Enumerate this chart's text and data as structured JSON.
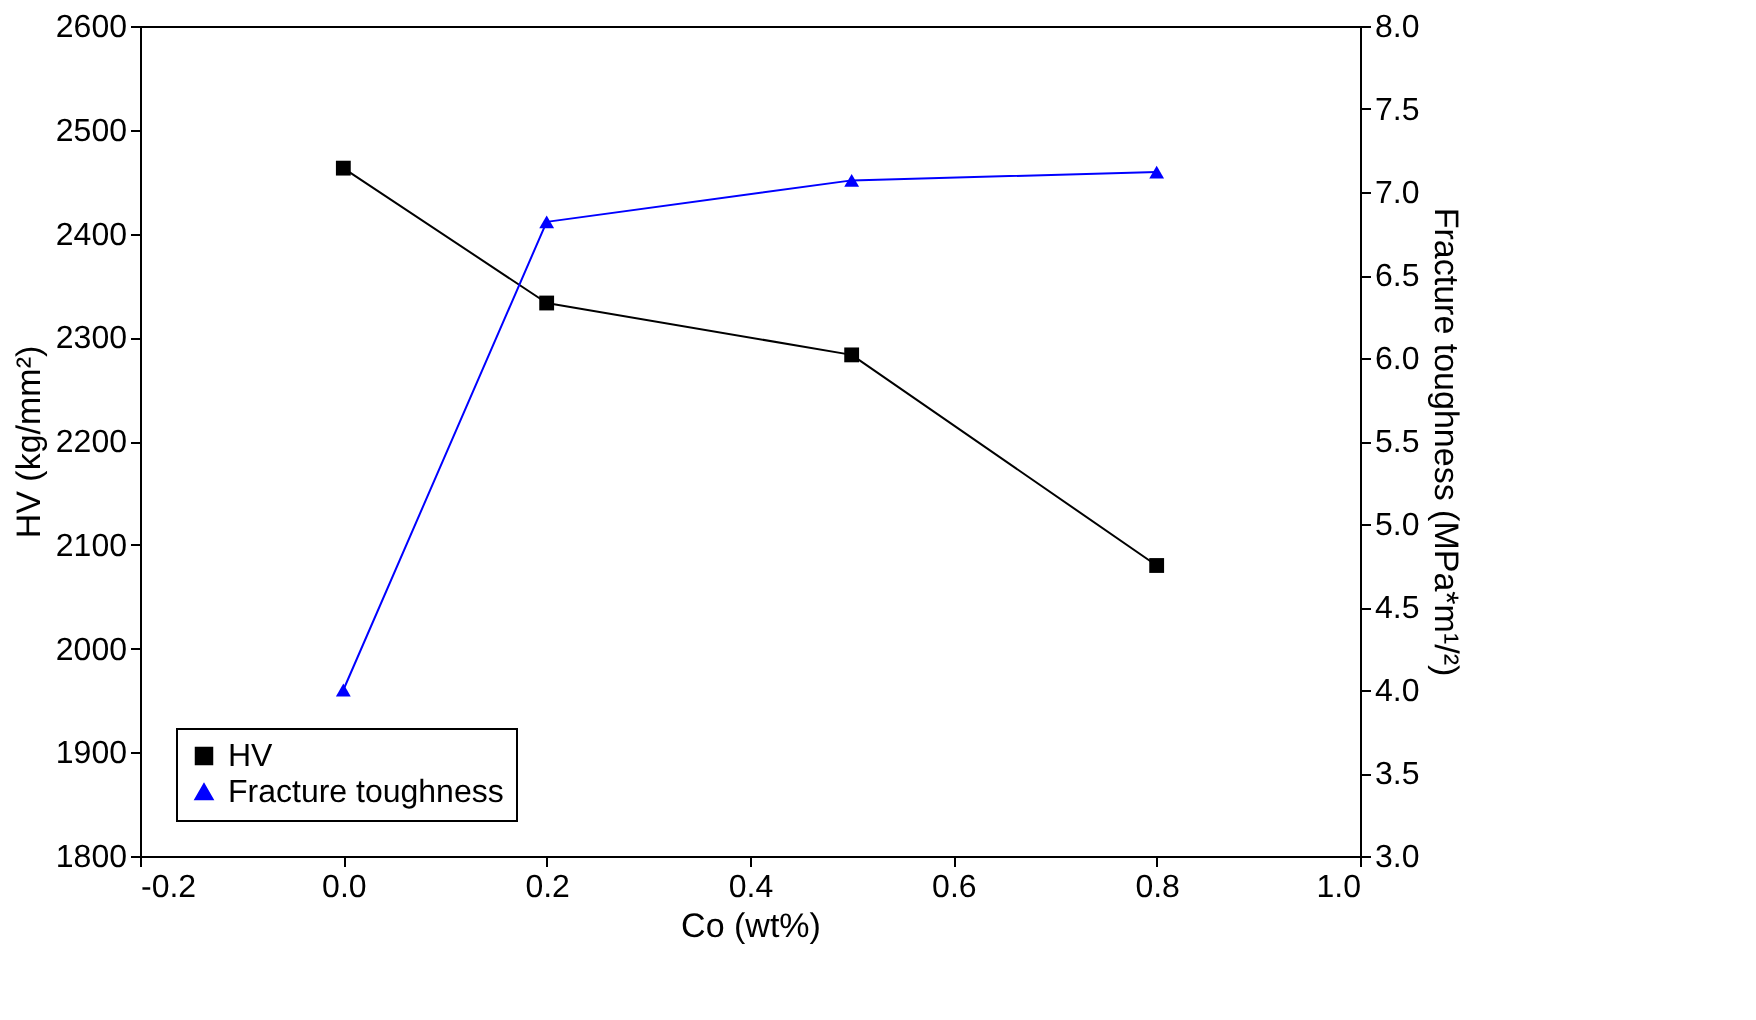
{
  "chart_data": {
    "type": "line",
    "xlabel": "Co (wt%)",
    "ylabel": "HV (kg/mm²)",
    "y2label": "Fracture toughness (MPa*m¹/²)",
    "x": [
      0.0,
      0.2,
      0.5,
      0.8
    ],
    "series": [
      {
        "name": "HV",
        "color": "#000000",
        "marker": "square",
        "values": [
          2463,
          2333,
          2283,
          2080
        ]
      },
      {
        "name": "Fracture toughness",
        "color": "#0000ff",
        "marker": "triangle",
        "axis": "y2",
        "values": [
          4.0,
          6.82,
          7.07,
          7.12
        ]
      }
    ],
    "xlim": [
      -0.2,
      1.0
    ],
    "xticks": [
      -0.2,
      {
        "value": 0,
        "label": "0.0"
      },
      0.2,
      0.4,
      0.6,
      0.8,
      {
        "value": 1,
        "label": "1.0"
      }
    ],
    "ylim": [
      1800,
      2600
    ],
    "yticks": [
      1800,
      1900,
      2000,
      2100,
      2200,
      2300,
      2400,
      2500,
      2600
    ],
    "y2lim": [
      3,
      8
    ],
    "y2ticks": [
      {
        "value": 3,
        "label": "3.0"
      },
      3.5,
      {
        "value": 4,
        "label": "4.0"
      },
      4.5,
      {
        "value": 5,
        "label": "5.0"
      },
      5.5,
      {
        "value": 6,
        "label": "6.0"
      },
      6.5,
      {
        "value": 7,
        "label": "7.0"
      },
      7.5,
      {
        "value": 8,
        "label": "8.0"
      }
    ],
    "legend": "bottom left",
    "grid": false,
    "line_style": "solid"
  }
}
